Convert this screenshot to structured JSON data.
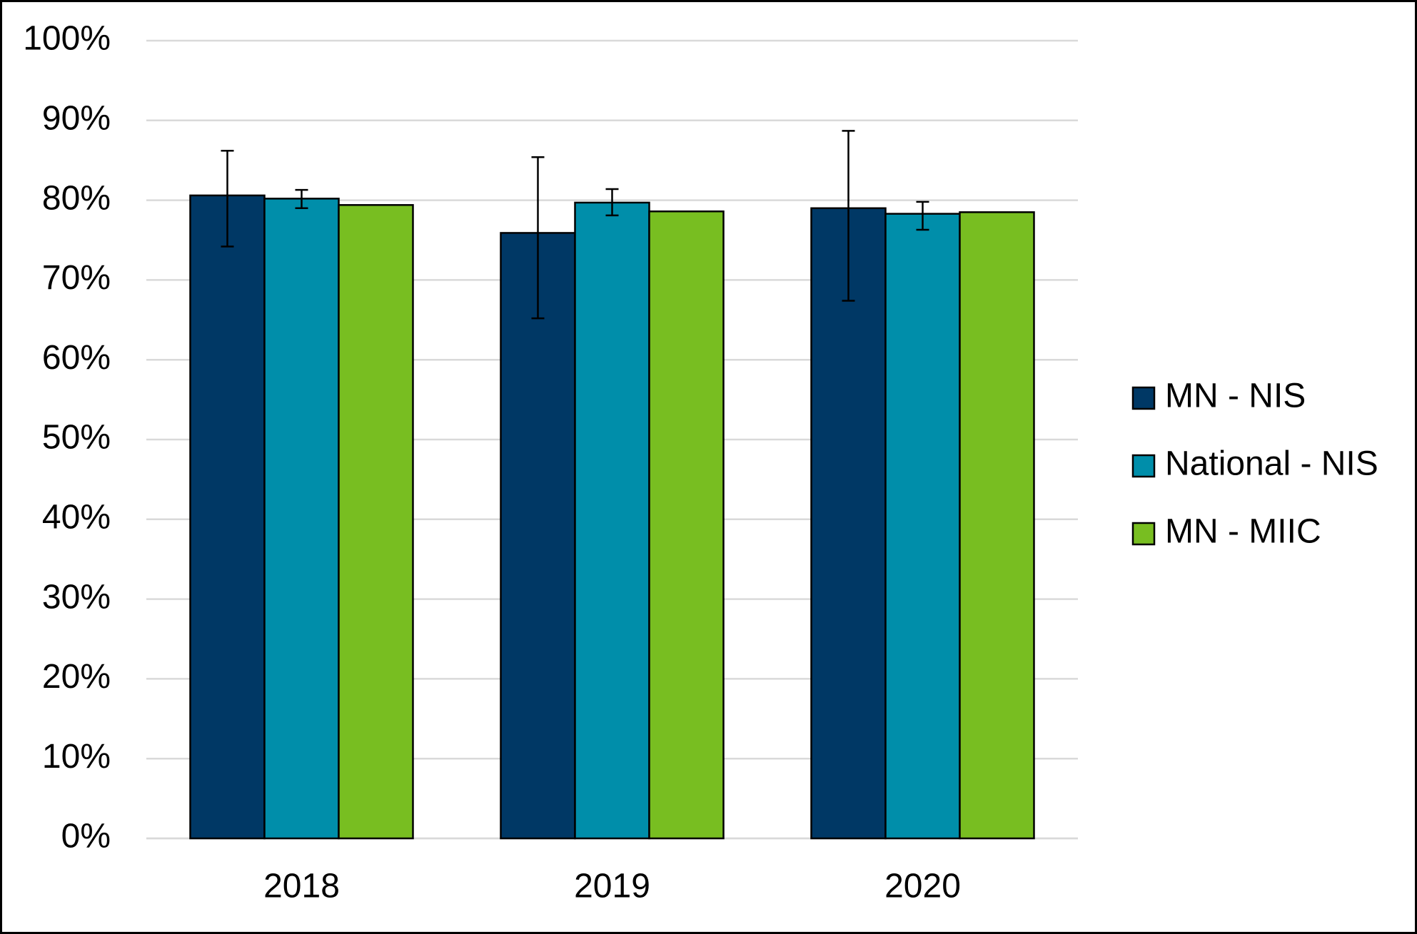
{
  "chart_data": {
    "type": "bar",
    "categories": [
      "2018",
      "2019",
      "2020"
    ],
    "series": [
      {
        "name": "MN - NIS",
        "color": "#003865",
        "values": [
          80.6,
          75.9,
          79.0
        ],
        "ci_low": [
          74.2,
          65.2,
          67.4
        ],
        "ci_high": [
          86.2,
          85.4,
          88.7
        ]
      },
      {
        "name": "National - NIS",
        "color": "#008eaa",
        "values": [
          80.2,
          79.7,
          78.3
        ],
        "ci_low": [
          79.0,
          78.1,
          76.3
        ],
        "ci_high": [
          81.3,
          81.4,
          79.8
        ]
      },
      {
        "name": "MN - MIIC",
        "color": "#78be21",
        "values": [
          79.4,
          78.6,
          78.5
        ]
      }
    ],
    "ylim": [
      0,
      100
    ],
    "yticks": [
      {
        "value": 0,
        "label": "0%"
      },
      {
        "value": 10,
        "label": "10%"
      },
      {
        "value": 20,
        "label": "20%"
      },
      {
        "value": 30,
        "label": "30%"
      },
      {
        "value": 40,
        "label": "40%"
      },
      {
        "value": 50,
        "label": "50%"
      },
      {
        "value": 60,
        "label": "60%"
      },
      {
        "value": 70,
        "label": "70%"
      },
      {
        "value": 80,
        "label": "80%"
      },
      {
        "value": 90,
        "label": "90%"
      },
      {
        "value": 100,
        "label": "100%"
      }
    ],
    "grid": true,
    "legend": "right"
  }
}
